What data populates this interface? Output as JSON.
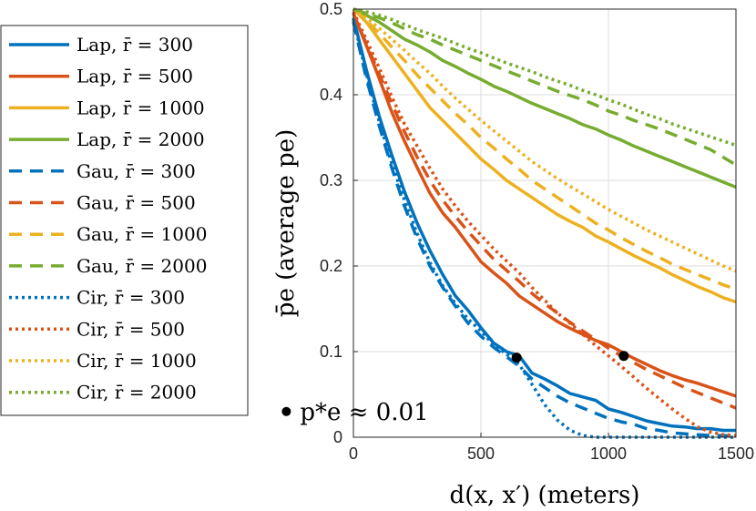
{
  "chart_data": {
    "type": "line",
    "title": "",
    "xlabel": "d(x, x′) (meters)",
    "ylabel": "p̄e (average pe)",
    "xlim": [
      0,
      1500
    ],
    "ylim": [
      0,
      0.5
    ],
    "xticks": [
      0,
      500,
      1000,
      1500
    ],
    "yticks": [
      0,
      0.1,
      0.2,
      0.3,
      0.4,
      0.5
    ],
    "xtick_labels": [
      "0",
      "500",
      "1000",
      "1500"
    ],
    "ytick_labels": [
      "0",
      "0.1",
      "0.2",
      "0.3",
      "0.4",
      "0.5"
    ],
    "grid": true,
    "legend_position": "outside-left",
    "series": [
      {
        "name": "Lap, r̄ = 300",
        "color": "#0072BD",
        "style": "solid",
        "x": [
          0,
          50,
          100,
          150,
          200,
          250,
          300,
          350,
          400,
          450,
          500,
          550,
          600,
          650,
          700,
          750,
          800,
          850,
          900,
          950,
          1000,
          1050,
          1100,
          1150,
          1200,
          1250,
          1300,
          1350,
          1400,
          1450,
          1500
        ],
        "y": [
          0.49,
          0.43,
          0.376,
          0.33,
          0.287,
          0.25,
          0.218,
          0.19,
          0.165,
          0.148,
          0.128,
          0.11,
          0.1,
          0.095,
          0.075,
          0.068,
          0.06,
          0.051,
          0.047,
          0.043,
          0.033,
          0.029,
          0.024,
          0.019,
          0.016,
          0.013,
          0.012,
          0.01,
          0.01,
          0.008,
          0.008
        ]
      },
      {
        "name": "Lap, r̄ = 500",
        "color": "#D95319",
        "style": "solid",
        "x": [
          0,
          50,
          100,
          150,
          200,
          250,
          300,
          350,
          400,
          450,
          500,
          550,
          600,
          650,
          700,
          750,
          800,
          850,
          900,
          950,
          1000,
          1050,
          1100,
          1150,
          1200,
          1250,
          1300,
          1350,
          1400,
          1450,
          1500
        ],
        "y": [
          0.495,
          0.458,
          0.42,
          0.38,
          0.346,
          0.315,
          0.285,
          0.262,
          0.245,
          0.225,
          0.205,
          0.192,
          0.18,
          0.165,
          0.155,
          0.145,
          0.135,
          0.127,
          0.12,
          0.113,
          0.108,
          0.1,
          0.092,
          0.085,
          0.078,
          0.072,
          0.067,
          0.063,
          0.058,
          0.053,
          0.048
        ]
      },
      {
        "name": "Lap, r̄ = 1000",
        "color": "#EDB120",
        "style": "solid",
        "x": [
          0,
          50,
          100,
          150,
          200,
          250,
          300,
          350,
          400,
          450,
          500,
          550,
          600,
          650,
          700,
          750,
          800,
          850,
          900,
          950,
          1000,
          1050,
          1100,
          1150,
          1200,
          1250,
          1300,
          1350,
          1400,
          1450,
          1500
        ],
        "y": [
          0.5,
          0.485,
          0.465,
          0.445,
          0.425,
          0.405,
          0.385,
          0.37,
          0.355,
          0.34,
          0.325,
          0.313,
          0.3,
          0.29,
          0.28,
          0.27,
          0.26,
          0.252,
          0.245,
          0.235,
          0.228,
          0.22,
          0.212,
          0.205,
          0.198,
          0.19,
          0.183,
          0.176,
          0.17,
          0.163,
          0.158
        ]
      },
      {
        "name": "Lap, r̄ = 2000",
        "color": "#77AC30",
        "style": "solid",
        "x": [
          0,
          50,
          100,
          150,
          200,
          250,
          300,
          350,
          400,
          450,
          500,
          550,
          600,
          650,
          700,
          750,
          800,
          850,
          900,
          950,
          1000,
          1050,
          1100,
          1150,
          1200,
          1250,
          1300,
          1350,
          1400,
          1450,
          1500
        ],
        "y": [
          0.5,
          0.493,
          0.485,
          0.475,
          0.465,
          0.458,
          0.45,
          0.44,
          0.433,
          0.425,
          0.418,
          0.41,
          0.404,
          0.397,
          0.39,
          0.384,
          0.378,
          0.372,
          0.365,
          0.36,
          0.353,
          0.347,
          0.34,
          0.334,
          0.328,
          0.322,
          0.316,
          0.31,
          0.304,
          0.298,
          0.292
        ]
      },
      {
        "name": "Gau, r̄ = 300",
        "color": "#0072BD",
        "style": "dashed",
        "x": [
          0,
          50,
          100,
          150,
          200,
          250,
          300,
          350,
          400,
          450,
          500,
          550,
          600,
          650,
          700,
          750,
          800,
          850,
          900,
          950,
          1000,
          1050,
          1100,
          1150,
          1200,
          1250,
          1300,
          1350,
          1400,
          1450,
          1500
        ],
        "y": [
          0.485,
          0.42,
          0.365,
          0.315,
          0.27,
          0.232,
          0.2,
          0.175,
          0.153,
          0.133,
          0.118,
          0.105,
          0.094,
          0.083,
          0.068,
          0.058,
          0.048,
          0.04,
          0.034,
          0.028,
          0.022,
          0.018,
          0.015,
          0.01,
          0.008,
          0.005,
          0.004,
          0.003,
          0.002,
          0.002,
          0.001
        ]
      },
      {
        "name": "Gau, r̄ = 500",
        "color": "#D95319",
        "style": "dashed",
        "x": [
          0,
          50,
          100,
          150,
          200,
          250,
          300,
          350,
          400,
          450,
          500,
          550,
          600,
          650,
          700,
          750,
          800,
          850,
          900,
          950,
          1000,
          1050,
          1100,
          1150,
          1200,
          1250,
          1300,
          1350,
          1400,
          1450,
          1500
        ],
        "y": [
          0.495,
          0.46,
          0.425,
          0.39,
          0.357,
          0.327,
          0.3,
          0.277,
          0.258,
          0.24,
          0.224,
          0.208,
          0.195,
          0.182,
          0.168,
          0.156,
          0.145,
          0.134,
          0.124,
          0.114,
          0.104,
          0.095,
          0.087,
          0.079,
          0.072,
          0.065,
          0.058,
          0.052,
          0.046,
          0.04,
          0.034
        ]
      },
      {
        "name": "Gau, r̄ = 1000",
        "color": "#EDB120",
        "style": "dashed",
        "x": [
          0,
          50,
          100,
          150,
          200,
          250,
          300,
          350,
          400,
          450,
          500,
          550,
          600,
          650,
          700,
          750,
          800,
          850,
          900,
          950,
          1000,
          1050,
          1100,
          1150,
          1200,
          1250,
          1300,
          1350,
          1400,
          1450,
          1500
        ],
        "y": [
          0.5,
          0.487,
          0.472,
          0.456,
          0.44,
          0.423,
          0.408,
          0.393,
          0.378,
          0.365,
          0.35,
          0.338,
          0.325,
          0.313,
          0.3,
          0.29,
          0.28,
          0.27,
          0.26,
          0.25,
          0.242,
          0.233,
          0.225,
          0.217,
          0.21,
          0.202,
          0.196,
          0.19,
          0.184,
          0.178,
          0.173
        ]
      },
      {
        "name": "Gau, r̄ = 2000",
        "color": "#77AC30",
        "style": "dashed",
        "x": [
          0,
          50,
          100,
          150,
          200,
          250,
          300,
          350,
          400,
          450,
          500,
          550,
          600,
          650,
          700,
          750,
          800,
          850,
          900,
          950,
          1000,
          1050,
          1100,
          1150,
          1200,
          1250,
          1300,
          1350,
          1400,
          1450,
          1500
        ],
        "y": [
          0.5,
          0.495,
          0.49,
          0.484,
          0.477,
          0.47,
          0.465,
          0.458,
          0.452,
          0.446,
          0.44,
          0.434,
          0.428,
          0.422,
          0.416,
          0.41,
          0.404,
          0.399,
          0.394,
          0.388,
          0.381,
          0.376,
          0.37,
          0.365,
          0.36,
          0.354,
          0.348,
          0.342,
          0.336,
          0.327,
          0.318
        ]
      },
      {
        "name": "Cir, r̄ = 300",
        "color": "#0072BD",
        "style": "dotted",
        "x": [
          0,
          50,
          100,
          150,
          200,
          250,
          300,
          350,
          400,
          450,
          500,
          550,
          600,
          650,
          700,
          750,
          800,
          850,
          900,
          950,
          1000,
          1050,
          1100,
          1150,
          1200,
          1250,
          1300,
          1350,
          1400,
          1450,
          1500
        ],
        "y": [
          0.488,
          0.425,
          0.37,
          0.32,
          0.277,
          0.238,
          0.204,
          0.177,
          0.156,
          0.138,
          0.124,
          0.108,
          0.097,
          0.085,
          0.062,
          0.038,
          0.02,
          0.008,
          0.002,
          0.0,
          0.0,
          0.0,
          0.0,
          0.0,
          0.0,
          0.0,
          0.0,
          0.0,
          0.0,
          0.0,
          0.0
        ]
      },
      {
        "name": "Cir, r̄ = 500",
        "color": "#D95319",
        "style": "dotted",
        "x": [
          0,
          50,
          100,
          150,
          200,
          250,
          300,
          350,
          400,
          450,
          500,
          550,
          600,
          650,
          700,
          750,
          800,
          850,
          900,
          950,
          1000,
          1050,
          1100,
          1150,
          1200,
          1250,
          1300,
          1350,
          1400,
          1450,
          1500
        ],
        "y": [
          0.497,
          0.465,
          0.432,
          0.398,
          0.366,
          0.34,
          0.314,
          0.29,
          0.27,
          0.252,
          0.236,
          0.22,
          0.206,
          0.192,
          0.175,
          0.16,
          0.145,
          0.133,
          0.12,
          0.107,
          0.095,
          0.083,
          0.07,
          0.057,
          0.045,
          0.033,
          0.022,
          0.012,
          0.006,
          0.003,
          0.002
        ]
      },
      {
        "name": "Cir, r̄ = 1000",
        "color": "#EDB120",
        "style": "dotted",
        "x": [
          0,
          50,
          100,
          150,
          200,
          250,
          300,
          350,
          400,
          450,
          500,
          550,
          600,
          650,
          700,
          750,
          800,
          850,
          900,
          950,
          1000,
          1050,
          1100,
          1150,
          1200,
          1250,
          1300,
          1350,
          1400,
          1450,
          1500
        ],
        "y": [
          0.5,
          0.49,
          0.478,
          0.465,
          0.452,
          0.438,
          0.425,
          0.41,
          0.396,
          0.383,
          0.37,
          0.358,
          0.346,
          0.334,
          0.322,
          0.312,
          0.302,
          0.293,
          0.284,
          0.275,
          0.266,
          0.258,
          0.25,
          0.242,
          0.235,
          0.228,
          0.221,
          0.214,
          0.207,
          0.2,
          0.194
        ]
      },
      {
        "name": "Cir, r̄ = 2000",
        "color": "#77AC30",
        "style": "dotted",
        "x": [
          0,
          50,
          100,
          150,
          200,
          250,
          300,
          350,
          400,
          450,
          500,
          550,
          600,
          650,
          700,
          750,
          800,
          850,
          900,
          950,
          1000,
          1050,
          1100,
          1150,
          1200,
          1250,
          1300,
          1350,
          1400,
          1450,
          1500
        ],
        "y": [
          0.5,
          0.497,
          0.493,
          0.488,
          0.482,
          0.476,
          0.471,
          0.466,
          0.46,
          0.454,
          0.449,
          0.443,
          0.437,
          0.432,
          0.427,
          0.421,
          0.416,
          0.411,
          0.405,
          0.4,
          0.394,
          0.389,
          0.383,
          0.377,
          0.372,
          0.366,
          0.361,
          0.356,
          0.351,
          0.346,
          0.341
        ]
      }
    ],
    "markers": [
      {
        "x": 640,
        "y": 0.093,
        "color": "#000000"
      },
      {
        "x": 1060,
        "y": 0.095,
        "color": "#000000"
      }
    ],
    "annotation": {
      "text": "p*e ≈ 0.01",
      "x": 130,
      "y": 0.03
    }
  }
}
